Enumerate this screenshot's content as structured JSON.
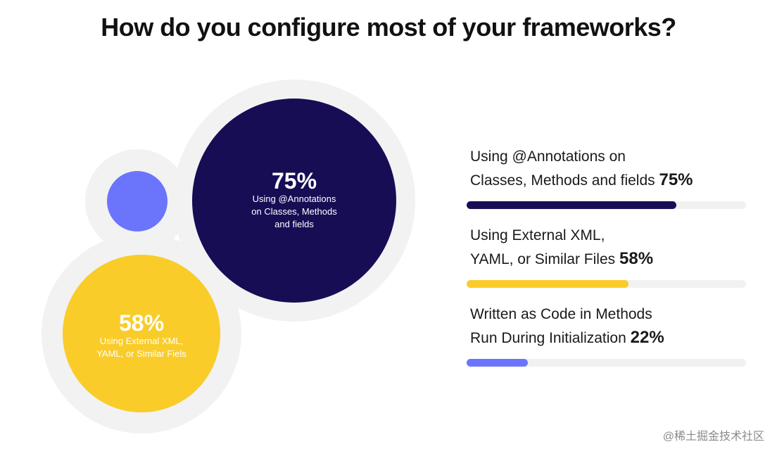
{
  "title": "How do you configure most of your frameworks?",
  "colors": {
    "annotations": "#160d55",
    "xml": "#f9cc2a",
    "code": "#6b75fc",
    "halo": "#f2f2f2",
    "track": "#f1f1f1"
  },
  "chart_data": {
    "type": "bar",
    "title": "How do you configure most of your frameworks?",
    "categories": [
      "Using @Annotations on Classes, Methods and fields",
      "Using External XML, YAML, or Similar Files",
      "Written as Code in Methods Run During Initialization"
    ],
    "values": [
      75,
      58,
      22
    ],
    "unit": "%",
    "xlim": [
      0,
      100
    ],
    "bubbles": [
      {
        "value": 75,
        "pct_label": "75%",
        "desc_lines": [
          "Using @Annotations",
          "on Classes, Methods",
          "and fields"
        ]
      },
      {
        "value": 58,
        "pct_label": "58%",
        "desc_lines": [
          "Using External XML,",
          "YAML, or Similar Fiels"
        ]
      },
      {
        "value": 22,
        "pct_label": "",
        "desc_lines": []
      }
    ],
    "legend": [
      {
        "lines": [
          "Using @Annotations on",
          "Classes, Methods and fields"
        ],
        "pct_label": "75%",
        "value": 75
      },
      {
        "lines": [
          "Using External XML,",
          "YAML, or Similar Files"
        ],
        "pct_label": "58%",
        "value": 58
      },
      {
        "lines": [
          "Written as Code in Methods",
          "Run During Initialization"
        ],
        "pct_label": "22%",
        "value": 22
      }
    ]
  },
  "watermark": "@稀土掘金技术社区"
}
